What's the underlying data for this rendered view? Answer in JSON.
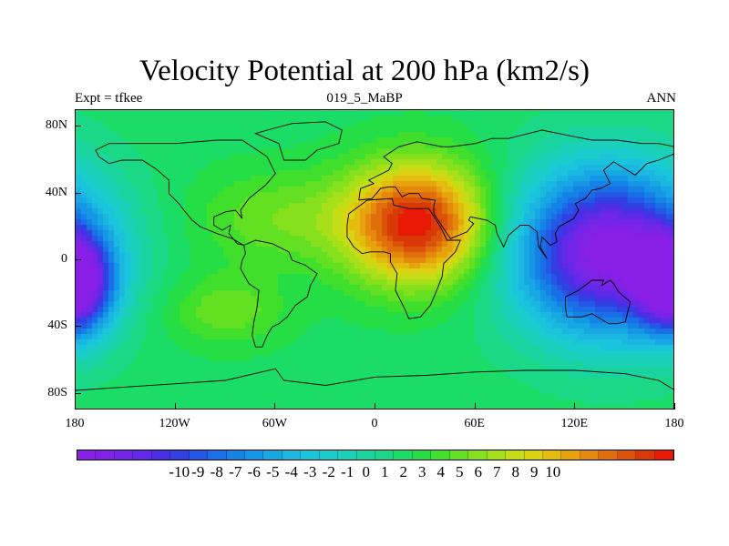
{
  "title": "Velocity Potential at 200 hPa (km2/s)",
  "subtitle_left": "Expt = tfkee",
  "subtitle_center": "019_5_MaBP",
  "subtitle_right": "ANN",
  "lat_labels": [
    "80N",
    "40N",
    "0",
    "40S",
    "80S"
  ],
  "lat_values": [
    80,
    40,
    0,
    -40,
    -80
  ],
  "lon_labels": [
    "180",
    "120W",
    "60W",
    "0",
    "60E",
    "120E",
    "180"
  ],
  "lon_values": [
    -180,
    -120,
    -60,
    0,
    60,
    120,
    180
  ],
  "colorbar": {
    "labels": [
      "-10",
      "-9",
      "-8",
      "-7",
      "-6",
      "-5",
      "-4",
      "-3",
      "-2",
      "-1",
      "0",
      "1",
      "2",
      "3",
      "4",
      "5",
      "6",
      "7",
      "8",
      "9",
      "10"
    ],
    "colors": [
      "#8a1fe8",
      "#7f22e6",
      "#7326e8",
      "#6229e8",
      "#4a2fe6",
      "#3140e3",
      "#2557e6",
      "#1a6ee8",
      "#1583e6",
      "#1596e6",
      "#17a8e3",
      "#1ab8e0",
      "#1ac4dc",
      "#1acccc",
      "#1ad0b8",
      "#1ad4a0",
      "#1ad886",
      "#1cdc68",
      "#25de46",
      "#3fdf2c",
      "#63e022",
      "#86e01c",
      "#a7df18",
      "#c5dd14",
      "#dbd312",
      "#e4bc10",
      "#e6a30e",
      "#e4890c",
      "#e06e0a",
      "#dc5208",
      "#d93807",
      "#e81a06"
    ]
  },
  "field_centers": [
    {
      "lon": 25,
      "lat": 22,
      "value": 10,
      "spread_lon": 30,
      "spread_lat": 25
    },
    {
      "lon": 140,
      "lat": 5,
      "value": -10,
      "spread_lon": 40,
      "spread_lat": 35
    },
    {
      "lon": -180,
      "lat": -15,
      "value": -8,
      "spread_lon": 15,
      "spread_lat": 20
    },
    {
      "lon": -90,
      "lat": -30,
      "value": 3,
      "spread_lon": 25,
      "spread_lat": 15
    },
    {
      "lon": -60,
      "lat": 25,
      "value": 3,
      "spread_lon": 35,
      "spread_lat": 20
    }
  ],
  "base_value": 1
}
